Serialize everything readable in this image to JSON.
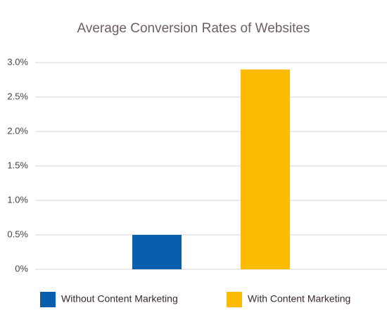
{
  "chart_data": {
    "type": "bar",
    "title": "Average Conversion Rates of Websites",
    "categories": [
      null
    ],
    "series": [
      {
        "name": "Without Content Marketing",
        "color": "#0a5fad",
        "values": [
          0.5
        ]
      },
      {
        "name": "With Content Marketing",
        "color": "#fdbb00",
        "values": [
          2.9
        ]
      }
    ],
    "ylim": [
      0,
      3
    ],
    "yticks": [
      {
        "value": 0,
        "label": "0%"
      },
      {
        "value": 0.5,
        "label": "0.5%"
      },
      {
        "value": 1,
        "label": "1.0%"
      },
      {
        "value": 1.5,
        "label": "1.5%"
      },
      {
        "value": 2,
        "label": "2.0%"
      },
      {
        "value": 2.5,
        "label": "2.5%"
      },
      {
        "value": 3,
        "label": "3.0%"
      }
    ],
    "grid": true,
    "legend": "bottom"
  }
}
